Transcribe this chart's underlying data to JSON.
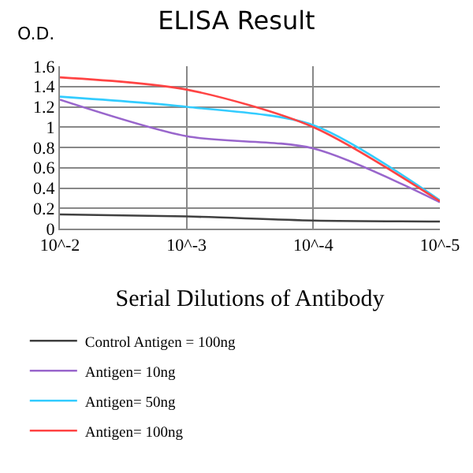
{
  "chart_data": {
    "type": "line",
    "title": "ELISA Result",
    "ylabel": "O.D.",
    "xlabel": "Serial Dilutions of Antibody",
    "categories": [
      "10^-2",
      "10^-3",
      "10^-4",
      "10^-5"
    ],
    "series": [
      {
        "name": "Control Antigen = 100ng",
        "color": "#404040",
        "values": [
          0.14,
          0.12,
          0.08,
          0.07
        ]
      },
      {
        "name": "Antigen= 10ng",
        "color": "#9966cc",
        "values": [
          1.27,
          0.91,
          0.79,
          0.26
        ]
      },
      {
        "name": "Antigen= 50ng",
        "color": "#33ccff",
        "values": [
          1.3,
          1.2,
          1.02,
          0.28
        ]
      },
      {
        "name": "Antigen= 100ng",
        "color": "#ff4444",
        "values": [
          1.49,
          1.37,
          1.0,
          0.27
        ]
      }
    ],
    "ylim": [
      0,
      1.6
    ],
    "yticks": [
      0,
      0.2,
      0.4,
      0.6,
      0.8,
      1,
      1.2,
      1.4,
      1.6
    ],
    "grid": true,
    "legend": "bottom",
    "marker": "none",
    "line_style": "solid"
  }
}
